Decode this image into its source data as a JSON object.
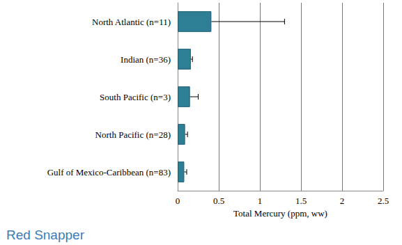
{
  "chart_data": {
    "type": "bar",
    "title": "Red Snapper",
    "x_label": "Total Mercury (ppm, ww)",
    "orientation": "horizontal",
    "categories": [
      "North Atlantic (n=11)",
      "Indian (n=36)",
      "South Pacific (n=3)",
      "North Pacific (n=28)",
      "Gulf of Mexico-Caribbean (n=83)"
    ],
    "values": [
      0.41,
      0.16,
      0.15,
      0.09,
      0.08
    ],
    "errors": [
      0.89,
      0.02,
      0.1,
      0.03,
      0.03
    ],
    "color": "#2e7f96",
    "xlim": [
      0,
      2.5
    ],
    "xticks": [
      0,
      0.5,
      1,
      1.5,
      2,
      2.5
    ],
    "grid": true
  }
}
